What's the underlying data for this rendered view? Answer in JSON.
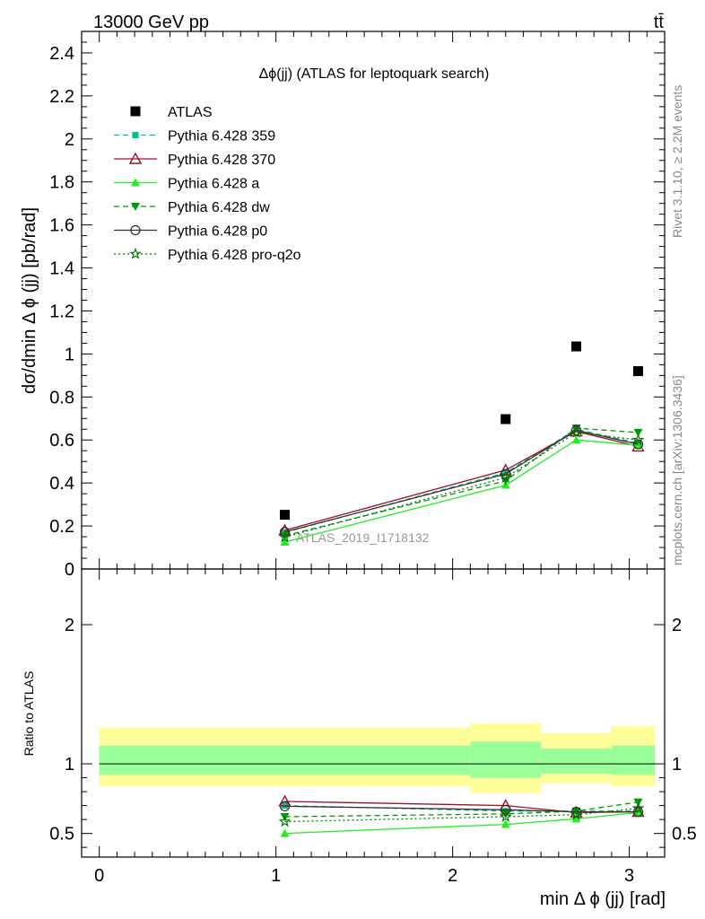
{
  "header": {
    "energy_label": "13000 GeV pp",
    "process_label": "tt̄",
    "rivet_label": "Rivet 3.1.10, ≥ 2.2M events",
    "mcplots_label": "mcplots.cern.ch [arXiv:1306.3436]"
  },
  "chart_data": [
    {
      "type": "scatter",
      "panel": "main",
      "title": "Δϕ(jj) (ATLAS for leptoquark search)",
      "ylabel": "dσ/dmin Δ ϕ (jj) [pb/rad]",
      "xlim": [
        -0.1,
        3.2
      ],
      "ylim": [
        0,
        2.5
      ],
      "yticks": [
        "0",
        "0.2",
        "0.4",
        "0.6",
        "0.8",
        "1",
        "1.2",
        "1.4",
        "1.6",
        "1.8",
        "2",
        "2.2",
        "2.4"
      ],
      "watermark": "ATLAS_2019_I1718132",
      "legend_position": "top-left",
      "x": [
        1.05,
        2.3,
        2.7,
        3.05
      ],
      "series": [
        {
          "name": "ATLAS",
          "color": "#000000",
          "marker": "square",
          "line": "none",
          "values": [
            0.252,
            0.697,
            1.035,
            0.92
          ]
        },
        {
          "name": "Pythia 6.428 359",
          "color": "#00c08b",
          "marker": "small-square",
          "line": "dashed",
          "values": [
            0.17,
            0.448,
            0.65,
            0.585
          ]
        },
        {
          "name": "Pythia 6.428 370",
          "color": "#a0102a",
          "marker": "open-triangle-up",
          "line": "solid",
          "values": [
            0.18,
            0.46,
            0.64,
            0.57
          ]
        },
        {
          "name": "Pythia 6.428 a",
          "color": "#22ee22",
          "marker": "triangle-up",
          "line": "solid",
          "values": [
            0.125,
            0.39,
            0.6,
            0.575
          ]
        },
        {
          "name": "Pythia 6.428 dw",
          "color": "#009900",
          "marker": "triangle-down",
          "line": "dashed",
          "values": [
            0.155,
            0.41,
            0.655,
            0.635
          ]
        },
        {
          "name": "Pythia 6.428 p0",
          "color": "#333333",
          "marker": "open-circle",
          "line": "solid",
          "values": [
            0.172,
            0.442,
            0.645,
            0.58
          ]
        },
        {
          "name": "Pythia 6.428 pro-q2o",
          "color": "#007700",
          "marker": "open-star",
          "line": "dotted",
          "values": [
            0.148,
            0.425,
            0.635,
            0.6
          ]
        }
      ]
    },
    {
      "type": "line",
      "panel": "ratio",
      "ylabel": "Ratio to ATLAS",
      "xlabel": "min Δ ϕ (jj) [rad]",
      "xlim": [
        -0.1,
        3.2
      ],
      "ylim": [
        0.33,
        2.4
      ],
      "yticks": [
        "0.5",
        "1",
        "2"
      ],
      "xticks": [
        "0",
        "1",
        "2",
        "3"
      ],
      "bands": [
        {
          "x0": 0.0,
          "x1": 2.1,
          "yellow": [
            0.84,
            1.26
          ],
          "green": [
            0.92,
            1.13
          ]
        },
        {
          "x0": 2.1,
          "x1": 2.5,
          "yellow": [
            0.79,
            1.29
          ],
          "green": [
            0.9,
            1.16
          ]
        },
        {
          "x0": 2.5,
          "x1": 2.9,
          "yellow": [
            0.86,
            1.22
          ],
          "green": [
            0.93,
            1.11
          ]
        },
        {
          "x0": 2.9,
          "x1": 3.2,
          "yellow": [
            0.84,
            1.27
          ],
          "green": [
            0.92,
            1.13
          ]
        }
      ],
      "x": [
        1.05,
        2.3,
        2.7,
        3.05
      ],
      "series": [
        {
          "name": "Pythia 6.428 359",
          "color": "#00c08b",
          "marker": "small-square",
          "line": "dashed",
          "values": [
            0.7,
            0.66,
            0.66,
            0.66
          ]
        },
        {
          "name": "Pythia 6.428 370",
          "color": "#a0102a",
          "marker": "open-triangle-up",
          "line": "solid",
          "values": [
            0.73,
            0.7,
            0.65,
            0.655
          ]
        },
        {
          "name": "Pythia 6.428 a",
          "color": "#22ee22",
          "marker": "triangle-up",
          "line": "solid",
          "values": [
            0.5,
            0.565,
            0.605,
            0.65
          ]
        },
        {
          "name": "Pythia 6.428 dw",
          "color": "#009900",
          "marker": "triangle-down",
          "line": "dashed",
          "values": [
            0.62,
            0.64,
            0.66,
            0.725
          ]
        },
        {
          "name": "Pythia 6.428 p0",
          "color": "#333333",
          "marker": "open-circle",
          "line": "solid",
          "values": [
            0.695,
            0.67,
            0.655,
            0.655
          ]
        },
        {
          "name": "Pythia 6.428 pro-q2o",
          "color": "#007700",
          "marker": "open-star",
          "line": "dotted",
          "values": [
            0.585,
            0.62,
            0.635,
            0.68
          ]
        }
      ]
    }
  ]
}
